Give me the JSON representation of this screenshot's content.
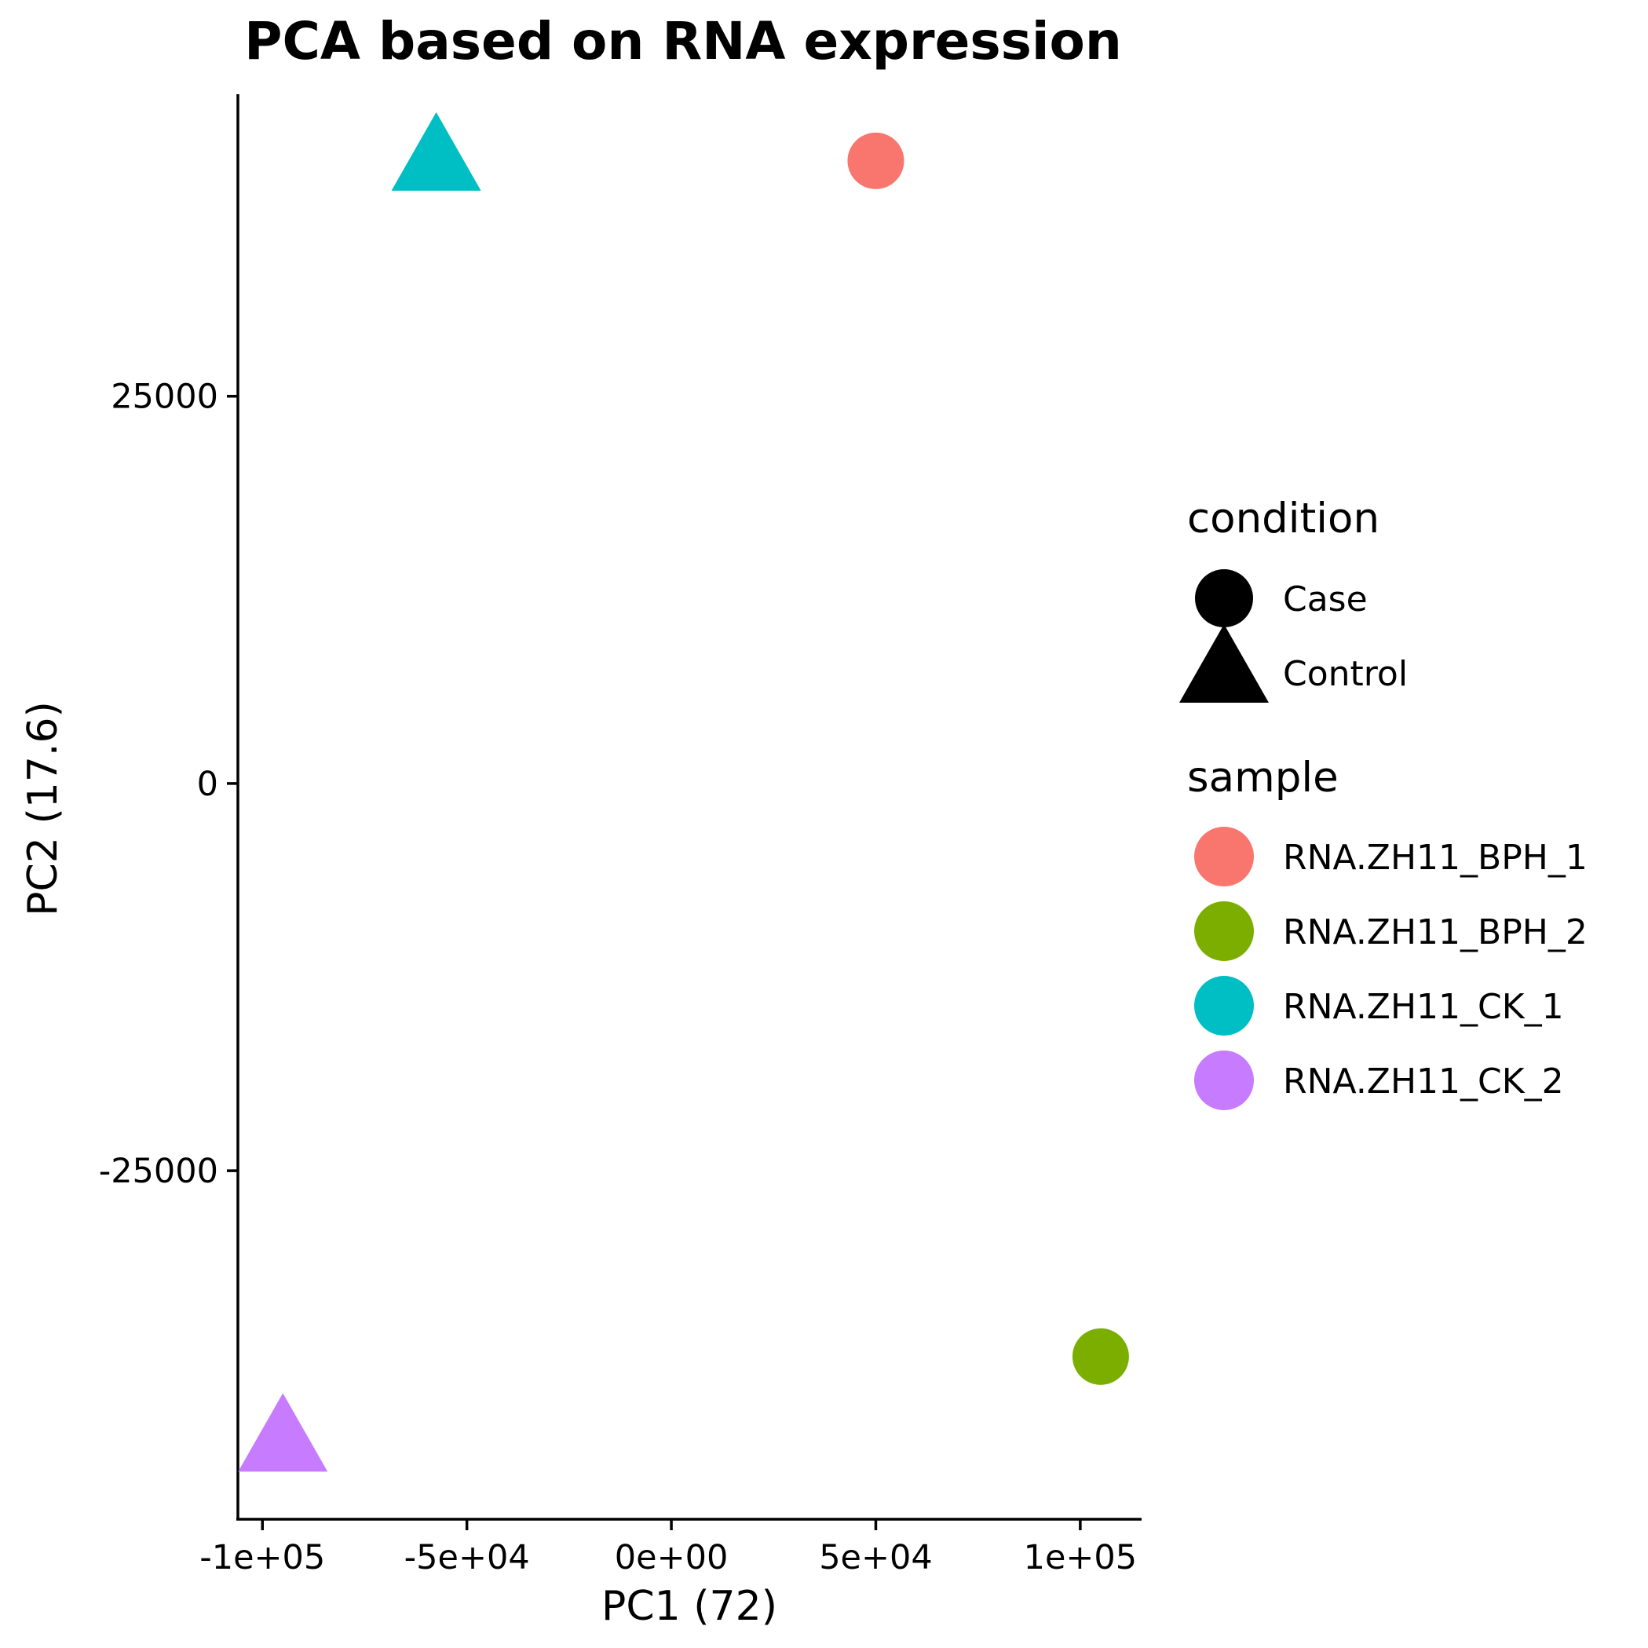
{
  "chart_data": {
    "type": "scatter",
    "title": "PCA based on RNA expression",
    "xlabel": "PC1 (72)",
    "ylabel": "PC2 (17.6)",
    "xlim": [
      -106000,
      115000
    ],
    "ylim": [
      -47500,
      44500
    ],
    "x_ticks": [
      {
        "value": -100000,
        "label": "-1e+05"
      },
      {
        "value": -50000,
        "label": "-5e+04"
      },
      {
        "value": 0,
        "label": "0e+00"
      },
      {
        "value": 50000,
        "label": "5e+04"
      },
      {
        "value": 100000,
        "label": "1e+05"
      }
    ],
    "y_ticks": [
      {
        "value": 25000,
        "label": "25000"
      },
      {
        "value": 0,
        "label": "0"
      },
      {
        "value": -25000,
        "label": "-25000"
      }
    ],
    "grid": false,
    "legend_position": "right",
    "points": [
      {
        "sample": "RNA.ZH11_BPH_1",
        "condition": "Case",
        "x": 50000,
        "y": 40200,
        "color": "#F8766D"
      },
      {
        "sample": "RNA.ZH11_BPH_2",
        "condition": "Case",
        "x": 105000,
        "y": -37000,
        "color": "#7CAE00"
      },
      {
        "sample": "RNA.ZH11_CK_1",
        "condition": "Control",
        "x": -57500,
        "y": 40200,
        "color": "#00BFC4"
      },
      {
        "sample": "RNA.ZH11_CK_2",
        "condition": "Control",
        "x": -95000,
        "y": -42500,
        "color": "#C77CFF"
      }
    ],
    "legend": {
      "condition": {
        "title": "condition",
        "items": [
          {
            "label": "Case",
            "shape": "circle"
          },
          {
            "label": "Control",
            "shape": "triangle"
          }
        ]
      },
      "sample": {
        "title": "sample",
        "items": [
          {
            "label": "RNA.ZH11_BPH_1",
            "color": "#F8766D"
          },
          {
            "label": "RNA.ZH11_BPH_2",
            "color": "#7CAE00"
          },
          {
            "label": "RNA.ZH11_CK_1",
            "color": "#00BFC4"
          },
          {
            "label": "RNA.ZH11_CK_2",
            "color": "#C77CFF"
          }
        ]
      }
    }
  }
}
